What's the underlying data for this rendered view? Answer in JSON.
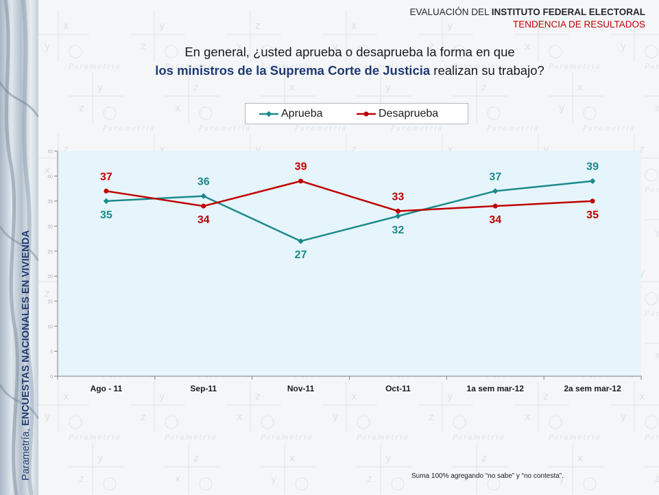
{
  "header": {
    "line1_prefix": "EVALUACIÓN DEL ",
    "line1_bold": "INSTITUTO FEDERAL ELECTORAL",
    "line2": "TENDENCIA DE RESULTADOS"
  },
  "question": {
    "line1": "En general, ¿usted aprueba o desaprueba la forma en que",
    "line2_bold": "los ministros de la Suprema Corte de Justicia",
    "line2_rest": " realizan su trabajo?"
  },
  "side_caption": {
    "prefix": "Parametría, ",
    "bold": "ENCUESTAS NACIONALES EN VIVIENDA"
  },
  "watermark": {
    "word": "Parametría",
    "letters": [
      "x",
      "y",
      "z"
    ]
  },
  "footnote": "Suma 100%  agregando “no sabe” y “no contesta”.",
  "colors": {
    "aprueba": "#1a8a8a",
    "desaprueba": "#c00000",
    "axis_labels": "#1a1a1a",
    "plot_bg": "#e6f4fb"
  },
  "chart_data": {
    "type": "line",
    "categories": [
      "Ago - 11",
      "Sep-11",
      "Nov-11",
      "Oct-11",
      "1a sem mar-12",
      "2a sem mar-12"
    ],
    "series": [
      {
        "name": "Aprueba",
        "values": [
          35,
          36,
          27,
          32,
          37,
          39
        ],
        "label_position": "alternating",
        "color": "#1a8a8a"
      },
      {
        "name": "Desaprueba",
        "values": [
          37,
          34,
          39,
          33,
          34,
          35
        ],
        "label_position": "alternating",
        "color": "#c00000"
      }
    ],
    "ylim": [
      0,
      45
    ],
    "yticks": [
      0,
      5,
      10,
      15,
      20,
      25,
      30,
      35,
      40,
      45
    ],
    "grid": false,
    "legend": "top"
  }
}
